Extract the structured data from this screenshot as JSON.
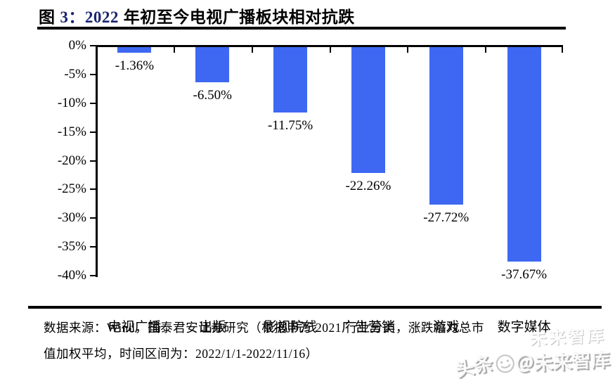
{
  "figure": {
    "title": {
      "label_prefix": "图 ",
      "number": "3：",
      "year": "2022",
      "rest": " 年初至今电视广播板块相对抗跌"
    }
  },
  "chart_data": {
    "type": "bar",
    "title": "2022 年初至今电视广播板块相对抗跌",
    "categories": [
      "电视广播",
      "出版",
      "影视院线",
      "广告营销",
      "游戏",
      "数字媒体"
    ],
    "values": [
      -1.36,
      -6.5,
      -11.75,
      -22.26,
      -27.72,
      -37.67
    ],
    "value_labels": [
      "-1.36%",
      "-6.50%",
      "-11.75%",
      "-22.26%",
      "-27.72%",
      "-37.67%"
    ],
    "y_tick_labels": [
      "0%",
      "-5%",
      "-10%",
      "-15%",
      "-20%",
      "-25%",
      "-30%",
      "-35%",
      "-40%"
    ],
    "ylim": [
      -40,
      0
    ],
    "y_step": -5,
    "xlabel": "",
    "ylabel": "",
    "grid": false,
    "legend": "none",
    "value_label_position": "below-bar-end",
    "bar_color": "#3e68f2"
  },
  "footer": {
    "source_line1": "数据来源：Wind，国泰君安证券研究（根据申万 2021 行业分类，涨跌幅为总市",
    "source_line2": "值加权平均，时间区间为：2022/1/1-2022/11/16）"
  },
  "watermark": {
    "ghost_text": "未来智库",
    "main_text_left": "头条",
    "main_text_right": "＠未来智库"
  },
  "colors": {
    "bar": "#3e68f2",
    "title_number": "#18246e",
    "text": "#000000",
    "rule": "#000000",
    "watermark_gray": "#bdbdbd"
  }
}
